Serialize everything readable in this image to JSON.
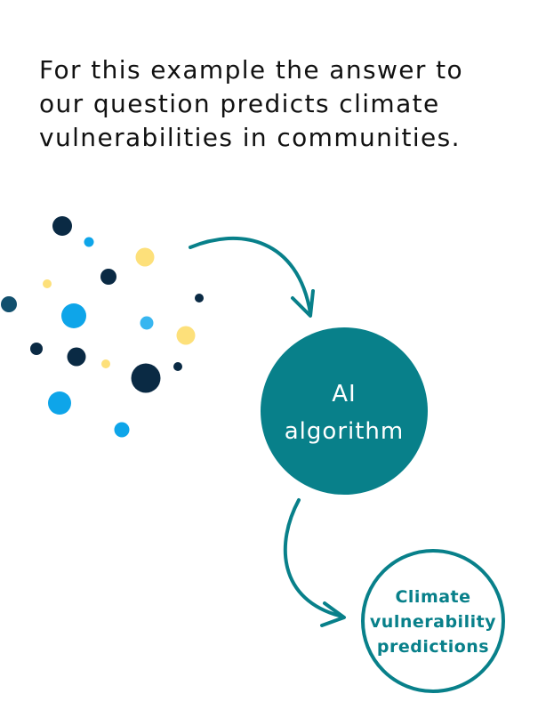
{
  "headline": {
    "lines": [
      "For this example the answer to",
      "our question predicts climate",
      "vulnerabilities in communities."
    ]
  },
  "colors": {
    "teal": "#08808a",
    "navy": "#0a2a44",
    "steel_blue": "#12506e",
    "bright_blue": "#0ea5e9",
    "light_blue": "#38b6f0",
    "yellow": "#fde07a",
    "text": "#111111",
    "background": "#ffffff"
  },
  "ai_node": {
    "label_lines": [
      "AI",
      "algorithm"
    ],
    "fill": "#08808a"
  },
  "output_node": {
    "label_lines": [
      "Climate",
      "vulnerability",
      "predictions"
    ],
    "stroke": "#08808a"
  }
}
